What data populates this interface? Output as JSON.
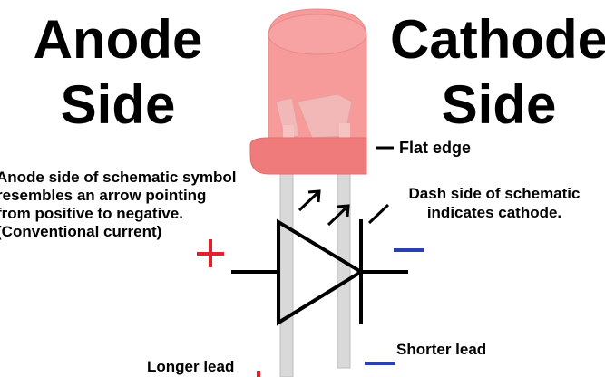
{
  "title_left": {
    "line1": "Anode",
    "line2": "Side"
  },
  "title_right": {
    "line1": "Cathode",
    "line2": "Side"
  },
  "labels": {
    "flat_edge": "Flat edge",
    "anode_note": [
      "Anode side of schematic symbol",
      "resembles an arrow pointing",
      "from positive to negative.",
      "(Conventional current)"
    ],
    "cathode_note": [
      "Dash side of schematic",
      "indicates cathode."
    ],
    "longer_lead": "Longer lead",
    "shorter_lead": "Shorter lead"
  },
  "colors": {
    "led_body": "#f79a9a",
    "led_rim": "#f07b7b",
    "lead": "#d8d8d8",
    "plus": "#e0202a",
    "minus": "#2a3fb0",
    "symbol": "#000000"
  }
}
